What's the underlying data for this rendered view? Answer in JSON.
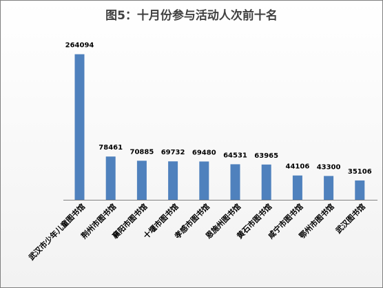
{
  "chart_data": {
    "type": "bar",
    "title": "图5：十月份参与活动人次前十名",
    "categories": [
      "武汉市少年儿童图书馆",
      "荆州市图书馆",
      "襄阳市图书馆",
      "十堰市图书馆",
      "孝感市图书馆",
      "恩施州图书馆",
      "黄石市图书馆",
      "咸宁市图书馆",
      "鄂州市图书馆",
      "武汉图书馆"
    ],
    "values": [
      264094,
      78461,
      70885,
      69732,
      69480,
      64531,
      63965,
      44106,
      43300,
      35106
    ],
    "data_labels": [
      "264094",
      "78461",
      "70885",
      "69732",
      "69480",
      "64531",
      "63965",
      "44106",
      "43300",
      "35106"
    ],
    "ylim": [
      0,
      280000
    ],
    "grid": false,
    "legend": "none",
    "xlabel": "",
    "ylabel": "",
    "colors": {
      "bar": "#4f81bd",
      "border": "#7f7f7f"
    }
  }
}
